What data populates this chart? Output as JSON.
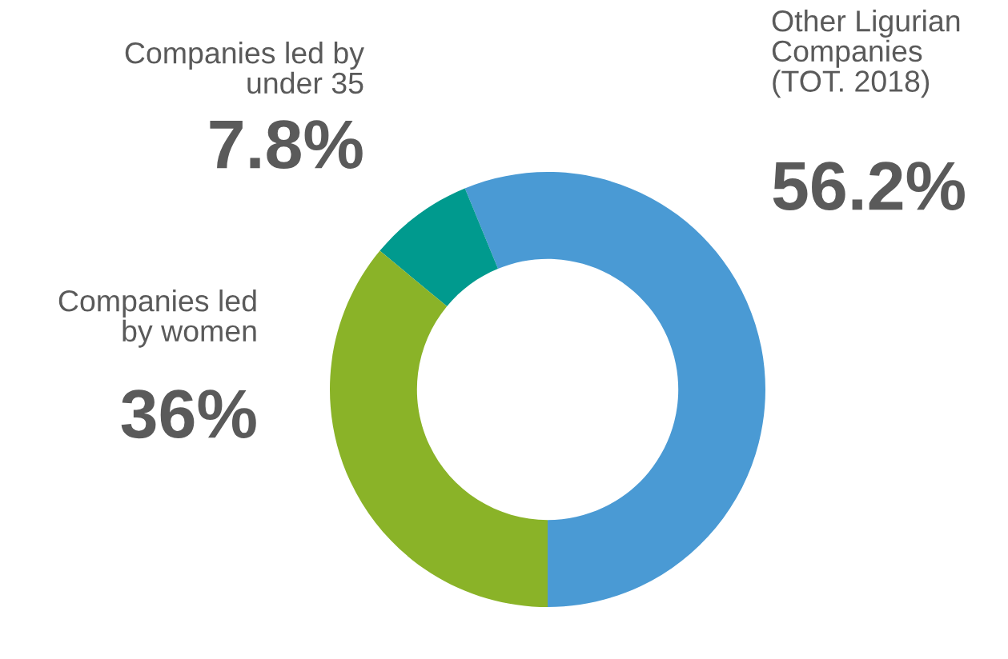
{
  "chart_data": {
    "type": "donut",
    "categories": [
      "Other Ligurian\nCompanies\n(TOT. 2018)",
      "Companies led by\nunder 35",
      "Companies led\nby women"
    ],
    "values": [
      56.2,
      7.8,
      36
    ],
    "value_labels": [
      "56.2%",
      "7.8%",
      "36%"
    ],
    "colors": [
      "#4a9ad4",
      "#009a8e",
      "#8ab328"
    ],
    "legend": false
  }
}
